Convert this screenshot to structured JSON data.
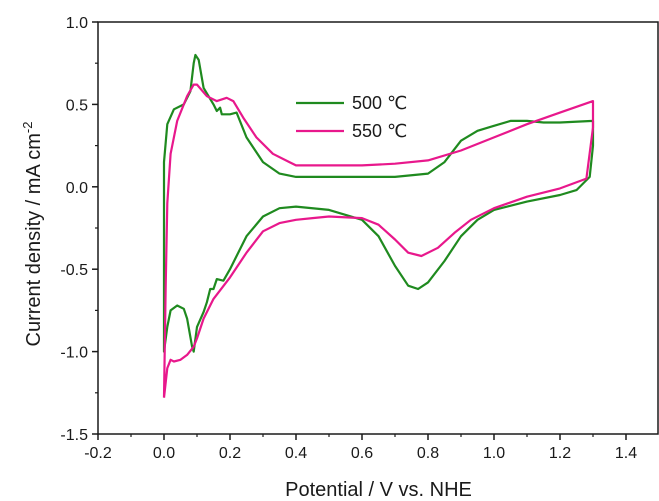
{
  "chart_data": {
    "type": "line",
    "xlabel": "Potential / V vs. NHE",
    "ylabel": "Current density / mA cm",
    "ylabel_superscript": "-2",
    "xlim": [
      -0.2,
      1.5
    ],
    "ylim": [
      -1.5,
      1.0
    ],
    "x_ticks": [
      "-0.2",
      "0.0",
      "0.2",
      "0.4",
      "0.6",
      "0.8",
      "1.0",
      "1.2",
      "1.4"
    ],
    "y_ticks": [
      "1.0",
      "0.5",
      "0.0",
      "-0.5",
      "-1.0",
      "-1.5"
    ],
    "grid": false,
    "legend_position": "top-center",
    "series": [
      {
        "name": "500 ℃",
        "color": "#1f8a1f",
        "points": [
          [
            0.0,
            -0.35
          ],
          [
            0.0,
            0.15
          ],
          [
            0.01,
            0.38
          ],
          [
            0.03,
            0.47
          ],
          [
            0.06,
            0.5
          ],
          [
            0.08,
            0.58
          ],
          [
            0.09,
            0.75
          ],
          [
            0.095,
            0.8
          ],
          [
            0.105,
            0.77
          ],
          [
            0.12,
            0.6
          ],
          [
            0.15,
            0.5
          ],
          [
            0.16,
            0.46
          ],
          [
            0.17,
            0.48
          ],
          [
            0.175,
            0.44
          ],
          [
            0.2,
            0.44
          ],
          [
            0.22,
            0.45
          ],
          [
            0.25,
            0.3
          ],
          [
            0.3,
            0.15
          ],
          [
            0.35,
            0.08
          ],
          [
            0.4,
            0.06
          ],
          [
            0.5,
            0.06
          ],
          [
            0.6,
            0.06
          ],
          [
            0.7,
            0.06
          ],
          [
            0.8,
            0.08
          ],
          [
            0.85,
            0.15
          ],
          [
            0.9,
            0.28
          ],
          [
            0.95,
            0.34
          ],
          [
            1.0,
            0.37
          ],
          [
            1.05,
            0.4
          ],
          [
            1.1,
            0.4
          ],
          [
            1.15,
            0.39
          ],
          [
            1.2,
            0.39
          ],
          [
            1.3,
            0.4
          ],
          [
            1.3,
            0.25
          ],
          [
            1.29,
            0.06
          ],
          [
            1.25,
            -0.02
          ],
          [
            1.2,
            -0.05
          ],
          [
            1.1,
            -0.09
          ],
          [
            1.0,
            -0.14
          ],
          [
            0.95,
            -0.2
          ],
          [
            0.9,
            -0.3
          ],
          [
            0.85,
            -0.45
          ],
          [
            0.8,
            -0.58
          ],
          [
            0.77,
            -0.62
          ],
          [
            0.74,
            -0.6
          ],
          [
            0.7,
            -0.48
          ],
          [
            0.65,
            -0.3
          ],
          [
            0.6,
            -0.2
          ],
          [
            0.5,
            -0.14
          ],
          [
            0.4,
            -0.12
          ],
          [
            0.35,
            -0.13
          ],
          [
            0.3,
            -0.18
          ],
          [
            0.25,
            -0.3
          ],
          [
            0.2,
            -0.5
          ],
          [
            0.18,
            -0.57
          ],
          [
            0.16,
            -0.56
          ],
          [
            0.15,
            -0.62
          ],
          [
            0.14,
            -0.62
          ],
          [
            0.13,
            -0.7
          ],
          [
            0.12,
            -0.76
          ],
          [
            0.1,
            -0.85
          ],
          [
            0.09,
            -1.0
          ],
          [
            0.085,
            -0.97
          ],
          [
            0.07,
            -0.8
          ],
          [
            0.06,
            -0.74
          ],
          [
            0.04,
            -0.72
          ],
          [
            0.02,
            -0.75
          ],
          [
            0.01,
            -0.85
          ],
          [
            0.0,
            -1.0
          ],
          [
            0.0,
            -0.35
          ]
        ]
      },
      {
        "name": "550 ℃",
        "color": "#e8188c",
        "points": [
          [
            0.0,
            -1.28
          ],
          [
            0.005,
            -0.6
          ],
          [
            0.01,
            -0.1
          ],
          [
            0.02,
            0.2
          ],
          [
            0.04,
            0.4
          ],
          [
            0.07,
            0.55
          ],
          [
            0.09,
            0.62
          ],
          [
            0.1,
            0.62
          ],
          [
            0.13,
            0.55
          ],
          [
            0.16,
            0.52
          ],
          [
            0.19,
            0.54
          ],
          [
            0.21,
            0.52
          ],
          [
            0.24,
            0.42
          ],
          [
            0.28,
            0.3
          ],
          [
            0.33,
            0.2
          ],
          [
            0.38,
            0.15
          ],
          [
            0.4,
            0.13
          ],
          [
            0.5,
            0.13
          ],
          [
            0.6,
            0.13
          ],
          [
            0.7,
            0.14
          ],
          [
            0.8,
            0.16
          ],
          [
            0.9,
            0.22
          ],
          [
            1.0,
            0.3
          ],
          [
            1.1,
            0.38
          ],
          [
            1.2,
            0.45
          ],
          [
            1.3,
            0.52
          ],
          [
            1.3,
            0.36
          ],
          [
            1.28,
            0.05
          ],
          [
            1.2,
            -0.01
          ],
          [
            1.1,
            -0.06
          ],
          [
            1.0,
            -0.13
          ],
          [
            0.93,
            -0.2
          ],
          [
            0.88,
            -0.28
          ],
          [
            0.83,
            -0.37
          ],
          [
            0.78,
            -0.42
          ],
          [
            0.74,
            -0.4
          ],
          [
            0.7,
            -0.32
          ],
          [
            0.65,
            -0.23
          ],
          [
            0.6,
            -0.19
          ],
          [
            0.5,
            -0.18
          ],
          [
            0.45,
            -0.19
          ],
          [
            0.4,
            -0.2
          ],
          [
            0.35,
            -0.22
          ],
          [
            0.3,
            -0.27
          ],
          [
            0.25,
            -0.4
          ],
          [
            0.2,
            -0.55
          ],
          [
            0.15,
            -0.68
          ],
          [
            0.12,
            -0.8
          ],
          [
            0.1,
            -0.92
          ],
          [
            0.09,
            -0.97
          ],
          [
            0.07,
            -1.02
          ],
          [
            0.05,
            -1.05
          ],
          [
            0.03,
            -1.06
          ],
          [
            0.02,
            -1.05
          ],
          [
            0.01,
            -1.1
          ],
          [
            0.0,
            -1.28
          ]
        ]
      }
    ]
  }
}
